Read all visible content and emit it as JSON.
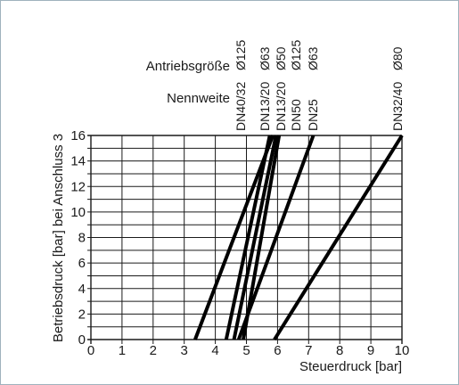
{
  "chart_data": {
    "type": "line",
    "xlabel": "Steuerdruck [bar]",
    "ylabel": "Betriebsdruck [bar] bei Anschluss 3",
    "row_labels": {
      "antriebsgroesse": "Antriebsgröße",
      "nennweite": "Nennweite"
    },
    "xlim": [
      0,
      10
    ],
    "ylim": [
      0,
      16
    ],
    "x_ticks": [
      "0",
      "1",
      "2",
      "3",
      "4",
      "5",
      "6",
      "7",
      "8",
      "9",
      "10"
    ],
    "y_ticks": [
      "0",
      "2",
      "4",
      "6",
      "8",
      "10",
      "12",
      "14",
      "16"
    ],
    "grid": true,
    "series": [
      {
        "nennweite": "DN40/32",
        "antriebsgroesse": "Ø125",
        "points": [
          [
            3.35,
            0
          ],
          [
            5.85,
            16
          ]
        ]
      },
      {
        "nennweite": "DN13/20",
        "antriebsgroesse": "Ø63",
        "points": [
          [
            4.35,
            0
          ],
          [
            5.75,
            16
          ]
        ]
      },
      {
        "nennweite": "DN13/20",
        "antriebsgroesse": "Ø50",
        "points": [
          [
            4.6,
            0
          ],
          [
            5.95,
            16
          ]
        ]
      },
      {
        "nennweite": "DN50",
        "antriebsgroesse": "Ø125",
        "points": [
          [
            4.9,
            0
          ],
          [
            6.05,
            16
          ]
        ]
      },
      {
        "nennweite": "DN25",
        "antriebsgroesse": "Ø63",
        "points": [
          [
            4.75,
            0
          ],
          [
            7.15,
            16
          ]
        ]
      },
      {
        "nennweite": "DN32/40",
        "antriebsgroesse": "Ø80",
        "points": [
          [
            5.9,
            0
          ],
          [
            10.0,
            16
          ]
        ]
      }
    ]
  }
}
